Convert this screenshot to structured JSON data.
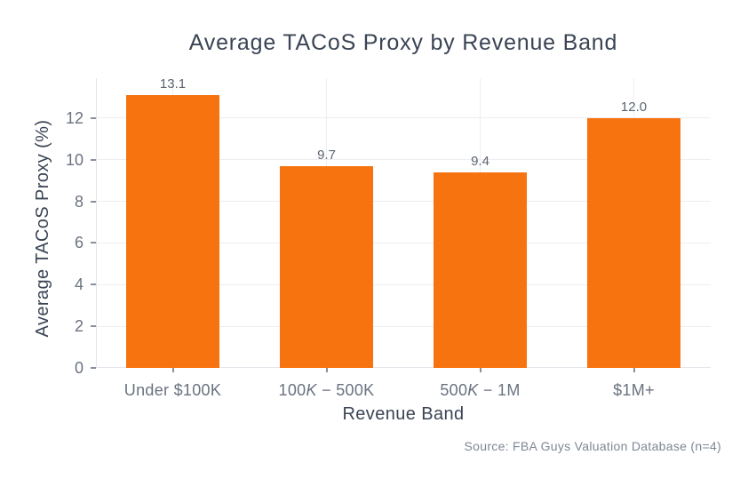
{
  "chart_data": {
    "type": "bar",
    "title": "Average TACoS Proxy by Revenue Band",
    "xlabel": "Revenue Band",
    "ylabel": "Average TACoS Proxy (%)",
    "source": "Source: FBA Guys Valuation Database (n=4)",
    "categories": [
      "Under $100K",
      "100K − 500K",
      "500K − 1M",
      "$1M+"
    ],
    "values": [
      13.1,
      9.7,
      9.4,
      12.0
    ],
    "value_labels": [
      "13.1",
      "9.7",
      "9.4",
      "12.0"
    ],
    "ylim": [
      0,
      13.92
    ],
    "yticks": [
      0,
      2,
      4,
      6,
      8,
      10,
      12
    ],
    "grid": true,
    "legend": "none",
    "colors": {
      "bar": "#F7730F",
      "grid": "#EEEEF2",
      "spine": "#E4E6EC",
      "tickmark": "#8A8F9B",
      "title_text": "#3A4454",
      "tick_text": "#6A7280",
      "value_text": "#5A6470",
      "source_text": "#7E8794"
    }
  },
  "category_display": [
    {
      "parts": [
        {
          "text": "Under $100K",
          "italic": false
        }
      ]
    },
    {
      "parts": [
        {
          "text": "100",
          "italic": false
        },
        {
          "text": "K",
          "italic": true
        },
        {
          "text": " − 500K",
          "italic": false
        }
      ]
    },
    {
      "parts": [
        {
          "text": "500",
          "italic": false
        },
        {
          "text": "K",
          "italic": true
        },
        {
          "text": " − 1M",
          "italic": false
        }
      ]
    },
    {
      "parts": [
        {
          "text": "$1M+",
          "italic": false
        }
      ]
    }
  ]
}
